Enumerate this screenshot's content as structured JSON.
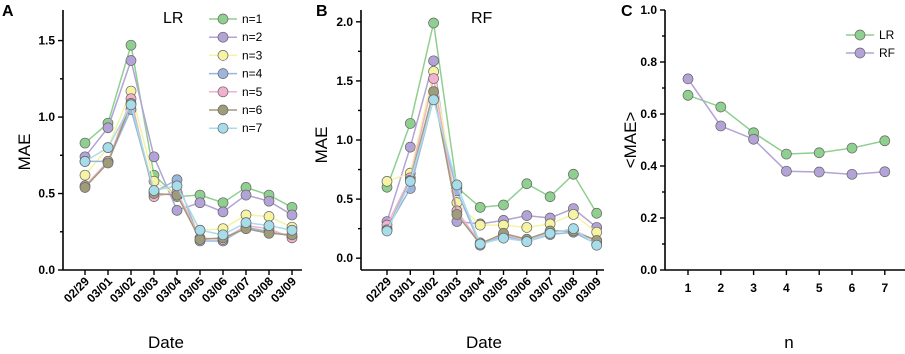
{
  "colors": {
    "n1": "#8fcf8f",
    "n2": "#b3a3d6",
    "n3": "#f6f3a3",
    "n4": "#9cb5dc",
    "n5": "#f2b1d0",
    "n6": "#9e9c7a",
    "n7": "#a7dcea",
    "LR": "#8fcf8f",
    "RF": "#b3a3d6"
  },
  "panels": {
    "A": {
      "letter": "A",
      "title": "LR"
    },
    "B": {
      "letter": "B",
      "title": "RF"
    },
    "C": {
      "letter": "C"
    }
  },
  "chart_data": [
    {
      "panel": "A",
      "type": "line",
      "title": "LR",
      "xlabel": "Date",
      "ylabel": "MAE",
      "categories": [
        "02/29",
        "03/01",
        "03/02",
        "03/03",
        "03/04",
        "03/05",
        "03/06",
        "03/07",
        "03/08",
        "03/09"
      ],
      "ylim": [
        0,
        1.7
      ],
      "yticks": [
        "0.0",
        "0.5",
        "1.0",
        "1.5"
      ],
      "legend": "top-right",
      "series": [
        {
          "name": "n=1",
          "color_key": "n1",
          "values": [
            0.83,
            0.96,
            1.47,
            0.62,
            0.48,
            0.49,
            0.44,
            0.54,
            0.49,
            0.41
          ]
        },
        {
          "name": "n=2",
          "color_key": "n2",
          "values": [
            0.74,
            0.93,
            1.37,
            0.74,
            0.39,
            0.44,
            0.38,
            0.49,
            0.45,
            0.36
          ]
        },
        {
          "name": "n=3",
          "color_key": "n3",
          "values": [
            0.62,
            0.8,
            1.17,
            0.58,
            0.49,
            0.26,
            0.27,
            0.36,
            0.35,
            0.28
          ]
        },
        {
          "name": "n=4",
          "color_key": "n4",
          "values": [
            0.71,
            0.71,
            1.05,
            0.51,
            0.59,
            0.19,
            0.19,
            0.28,
            0.25,
            0.22
          ]
        },
        {
          "name": "n=5",
          "color_key": "n5",
          "values": [
            0.55,
            0.71,
            1.12,
            0.48,
            0.51,
            0.21,
            0.2,
            0.29,
            0.27,
            0.21
          ]
        },
        {
          "name": "n=6",
          "color_key": "n6",
          "values": [
            0.54,
            0.7,
            1.09,
            0.5,
            0.49,
            0.2,
            0.21,
            0.27,
            0.24,
            0.23
          ]
        },
        {
          "name": "n=7",
          "color_key": "n7",
          "values": [
            0.71,
            0.8,
            1.08,
            0.52,
            0.55,
            0.26,
            0.23,
            0.31,
            0.29,
            0.26
          ]
        }
      ]
    },
    {
      "panel": "B",
      "type": "line",
      "title": "RF",
      "xlabel": "Date",
      "ylabel": "MAE",
      "categories": [
        "02/29",
        "03/01",
        "03/02",
        "03/03",
        "03/04",
        "03/05",
        "03/06",
        "03/07",
        "03/08",
        "03/09"
      ],
      "ylim": [
        -0.1,
        2.1
      ],
      "yticks": [
        "0.0",
        "0.5",
        "1.0",
        "1.5",
        "2.0"
      ],
      "series": [
        {
          "name": "n=1",
          "color_key": "n1",
          "values": [
            0.6,
            1.14,
            1.99,
            0.6,
            0.43,
            0.45,
            0.63,
            0.52,
            0.71,
            0.38
          ]
        },
        {
          "name": "n=2",
          "color_key": "n2",
          "values": [
            0.31,
            0.94,
            1.67,
            0.31,
            0.29,
            0.32,
            0.36,
            0.34,
            0.42,
            0.26
          ]
        },
        {
          "name": "n=3",
          "color_key": "n3",
          "values": [
            0.65,
            0.72,
            1.58,
            0.47,
            0.28,
            0.28,
            0.26,
            0.29,
            0.37,
            0.22
          ]
        },
        {
          "name": "n=4",
          "color_key": "n4",
          "values": [
            0.25,
            0.59,
            1.35,
            0.57,
            0.11,
            0.19,
            0.14,
            0.2,
            0.22,
            0.12
          ]
        },
        {
          "name": "n=5",
          "color_key": "n5",
          "values": [
            0.28,
            0.68,
            1.52,
            0.4,
            0.13,
            0.2,
            0.15,
            0.22,
            0.24,
            0.14
          ]
        },
        {
          "name": "n=6",
          "color_key": "n6",
          "values": [
            0.24,
            0.66,
            1.41,
            0.37,
            0.12,
            0.21,
            0.16,
            0.23,
            0.23,
            0.15
          ]
        },
        {
          "name": "n=7",
          "color_key": "n7",
          "values": [
            0.23,
            0.65,
            1.34,
            0.62,
            0.12,
            0.17,
            0.14,
            0.21,
            0.25,
            0.11
          ]
        }
      ]
    },
    {
      "panel": "C",
      "type": "line",
      "xlabel": "n",
      "ylabel": "<MAE>",
      "categories": [
        "1",
        "2",
        "3",
        "4",
        "5",
        "6",
        "7"
      ],
      "ylim": [
        0,
        1.0
      ],
      "yticks": [
        "0.0",
        "0.2",
        "0.4",
        "0.6",
        "0.8",
        "1.0"
      ],
      "legend": "top-right",
      "series": [
        {
          "name": "LR",
          "color_key": "LR",
          "values": [
            0.672,
            0.627,
            0.528,
            0.446,
            0.451,
            0.469,
            0.497
          ]
        },
        {
          "name": "RF",
          "color_key": "RF",
          "values": [
            0.735,
            0.554,
            0.503,
            0.38,
            0.377,
            0.368,
            0.378
          ]
        }
      ]
    }
  ]
}
